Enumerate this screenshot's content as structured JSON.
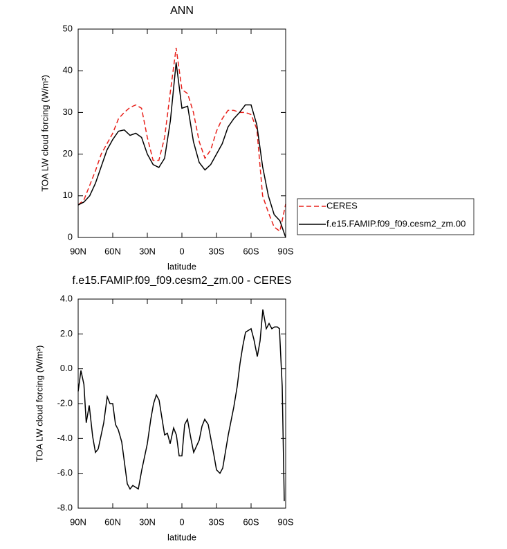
{
  "chart_data": [
    {
      "type": "line",
      "title": "ANN",
      "xlabel": "latitude",
      "ylabel": "TOA LW cloud forcing (W/m²)",
      "x": [
        90,
        85,
        80,
        75,
        70,
        65,
        60,
        55,
        50,
        45,
        40,
        35,
        30,
        25,
        20,
        15,
        10,
        5,
        0,
        -5,
        -10,
        -15,
        -20,
        -25,
        -30,
        -35,
        -40,
        -45,
        -50,
        -55,
        -60,
        -65,
        -70,
        -75,
        -80,
        -85,
        -90
      ],
      "series": [
        {
          "name": "CERES",
          "color": "#e8201a",
          "dash": true,
          "values": [
            7.8,
            9,
            12.5,
            16,
            20,
            22.5,
            25,
            28.5,
            30,
            31.2,
            31.8,
            31,
            24,
            18.5,
            18.5,
            24,
            35,
            45.5,
            35.5,
            34.5,
            30,
            23,
            19,
            21,
            25.5,
            28.5,
            30.5,
            30.5,
            30,
            30,
            29.5,
            26,
            10,
            6,
            2.5,
            1.5,
            8
          ]
        },
        {
          "name": "f.e15.FAMIP.f09_f09.cesm2_zm.00",
          "color": "#000000",
          "dash": false,
          "values": [
            7.8,
            8.5,
            10,
            13,
            17,
            21,
            23.5,
            25.5,
            25.8,
            24.5,
            25,
            24,
            20,
            17.5,
            16.8,
            19,
            28,
            42,
            31,
            31.5,
            23,
            18,
            16.2,
            17.5,
            20,
            22.5,
            26.5,
            28.5,
            30,
            31.8,
            31.8,
            27,
            17,
            10,
            5.5,
            4,
            0
          ]
        }
      ],
      "xlim": [
        90,
        -90
      ],
      "xticks": [
        {
          "value": 90,
          "label": "90N"
        },
        {
          "value": 60,
          "label": "60N"
        },
        {
          "value": 30,
          "label": "30N"
        },
        0,
        {
          "value": -30,
          "label": "30S"
        },
        {
          "value": -60,
          "label": "60S"
        },
        {
          "value": -90,
          "label": "90S"
        }
      ],
      "ylim": [
        0,
        50
      ],
      "yticks": [
        0,
        10,
        20,
        30,
        40,
        50
      ],
      "legend": "right"
    },
    {
      "type": "line",
      "title": "f.e15.FAMIP.f09_f09.cesm2_zm.00 - CERES",
      "xlabel": "latitude",
      "ylabel": "TOA LW cloud forcing (W/m²)",
      "x": [
        90,
        87.6,
        85,
        83,
        80.4,
        77.4,
        75,
        72.6,
        67.8,
        64.8,
        62.4,
        60,
        57.6,
        55.2,
        52.2,
        47.4,
        45,
        42.6,
        37.8,
        34.8,
        30,
        27,
        24.6,
        22.2,
        19.8,
        15,
        12.6,
        10.2,
        7.2,
        4.8,
        2.4,
        0,
        -2.4,
        -4.8,
        -7.8,
        -10.2,
        -15,
        -17.4,
        -19.8,
        -22.8,
        -27.6,
        -30,
        -33,
        -35.4,
        -40.2,
        -45,
        -48,
        -50.4,
        -52.8,
        -55.2,
        -60,
        -62.4,
        -65.4,
        -67.8,
        -70.2,
        -73.2,
        -75.6,
        -78,
        -80.4,
        -82.8,
        -84.6,
        -87,
        -88.8
      ],
      "values": [
        -1.3,
        -0.1,
        -0.9,
        -3.1,
        -2.1,
        -3.9,
        -4.8,
        -4.6,
        -3.1,
        -1.6,
        -2.0,
        -2.0,
        -3.2,
        -3.5,
        -4.2,
        -6.6,
        -6.9,
        -6.7,
        -6.9,
        -5.8,
        -4.3,
        -2.9,
        -2.0,
        -1.5,
        -1.8,
        -3.8,
        -3.7,
        -4.3,
        -3.4,
        -3.8,
        -5.0,
        -5.0,
        -3.2,
        -2.9,
        -4.0,
        -4.8,
        -4.1,
        -3.3,
        -2.9,
        -3.2,
        -4.9,
        -5.8,
        -6.0,
        -5.7,
        -3.8,
        -2.2,
        -1.0,
        0.3,
        1.3,
        2.1,
        2.3,
        1.7,
        0.7,
        1.6,
        3.4,
        2.3,
        2.6,
        2.3,
        2.4,
        2.4,
        2.3,
        -1.0,
        -7.6
      ],
      "color": "#000000",
      "xlim": [
        90,
        -90
      ],
      "xticks": [
        {
          "value": 90,
          "label": "90N"
        },
        {
          "value": 60,
          "label": "60N"
        },
        {
          "value": 30,
          "label": "30N"
        },
        0,
        {
          "value": -30,
          "label": "30S"
        },
        {
          "value": -60,
          "label": "60S"
        },
        {
          "value": -90,
          "label": "90S"
        }
      ],
      "ylim": [
        -8,
        4
      ],
      "yticks": [
        {
          "value": -8,
          "label": "-8.0"
        },
        {
          "value": -6,
          "label": "-6.0"
        },
        {
          "value": -4,
          "label": "-4.0"
        },
        {
          "value": -2,
          "label": "-2.0"
        },
        {
          "value": 0,
          "label": "0.0"
        },
        {
          "value": 2,
          "label": "2.0"
        },
        {
          "value": 4,
          "label": "4.0"
        }
      ]
    }
  ]
}
